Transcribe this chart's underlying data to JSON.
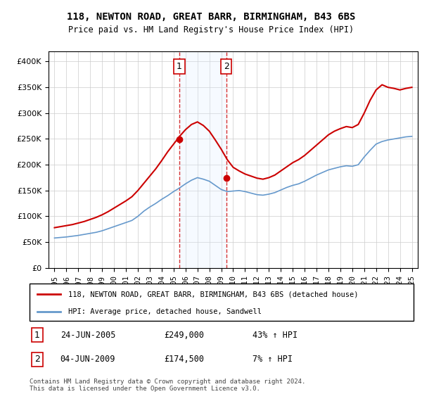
{
  "title_line1": "118, NEWTON ROAD, GREAT BARR, BIRMINGHAM, B43 6BS",
  "title_line2": "Price paid vs. HM Land Registry's House Price Index (HPI)",
  "legend_line1": "118, NEWTON ROAD, GREAT BARR, BIRMINGHAM, B43 6BS (detached house)",
  "legend_line2": "HPI: Average price, detached house, Sandwell",
  "footnote": "Contains HM Land Registry data © Crown copyright and database right 2024.\nThis data is licensed under the Open Government Licence v3.0.",
  "sale1_label": "1",
  "sale1_date": "24-JUN-2005",
  "sale1_price": "£249,000",
  "sale1_hpi": "43% ↑ HPI",
  "sale2_label": "2",
  "sale2_date": "04-JUN-2009",
  "sale2_price": "£174,500",
  "sale2_hpi": "7% ↑ HPI",
  "sale1_x": 2005.48,
  "sale1_y": 249000,
  "sale2_x": 2009.42,
  "sale2_y": 174500,
  "red_color": "#cc0000",
  "blue_color": "#6699cc",
  "vline_color": "#cc0000",
  "shade_color": "#ddeeff",
  "ylim": [
    0,
    420000
  ],
  "xlim": [
    1994.5,
    2025.5
  ],
  "yticks": [
    0,
    50000,
    100000,
    150000,
    200000,
    250000,
    300000,
    350000,
    400000
  ],
  "xticks": [
    1995,
    1996,
    1997,
    1998,
    1999,
    2000,
    2001,
    2002,
    2003,
    2004,
    2005,
    2006,
    2007,
    2008,
    2009,
    2010,
    2011,
    2012,
    2013,
    2014,
    2015,
    2016,
    2017,
    2018,
    2019,
    2020,
    2021,
    2022,
    2023,
    2024,
    2025
  ]
}
